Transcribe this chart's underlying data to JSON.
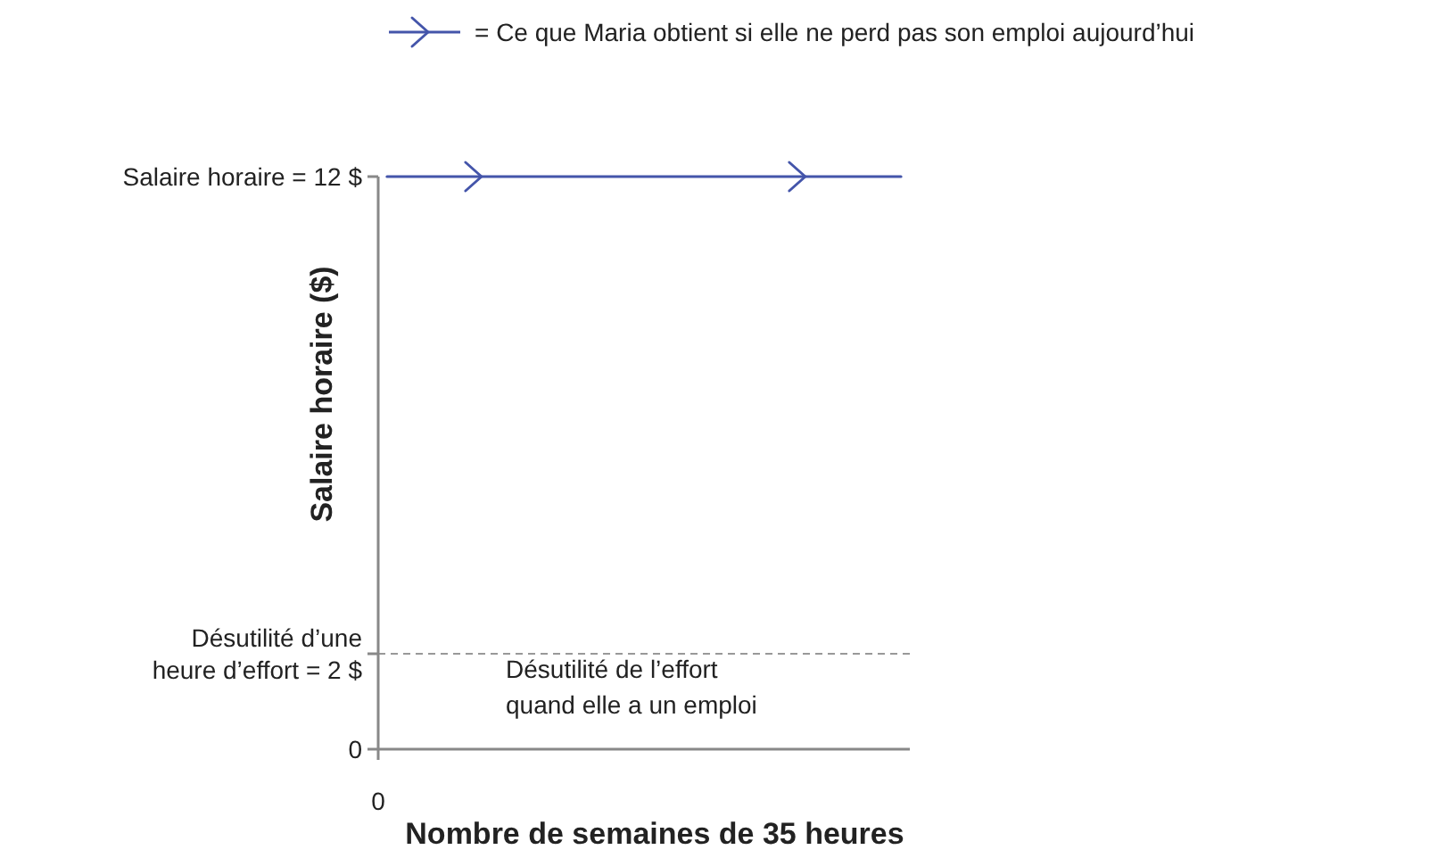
{
  "chart_data": {
    "type": "line",
    "xlabel": "Nombre de semaines de 35 heures",
    "ylabel": "Salaire horaire ($)",
    "categories": [
      null,
      null,
      null,
      null,
      null,
      null,
      null,
      null,
      null,
      null,
      null,
      null,
      null,
      null,
      null,
      null,
      null,
      null,
      null,
      null,
      null,
      null,
      null,
      null,
      null,
      null,
      null,
      null,
      null,
      null
    ],
    "series": [
      {
        "name": "= Ce que Maria obtient si elle ne perd pas son emploi aujourd’hui",
        "color": "#4455aa",
        "values": [
          12,
          12,
          12,
          12,
          12,
          12,
          12,
          12,
          12,
          12,
          12,
          12,
          12,
          12,
          12,
          12,
          12,
          12,
          12,
          12,
          12,
          12,
          12,
          12,
          12,
          12,
          12,
          12,
          12,
          12
        ]
      }
    ],
    "ylim": [
      0,
      12
    ],
    "yticks": [
      0,
      {
        "value": 2,
        "label": "Désutilité d’une heure d’effort = 2 $"
      },
      {
        "value": 12,
        "label": "Salaire horaire = 12 $"
      }
    ],
    "ref_lines": [
      {
        "axis": "y",
        "value": 2,
        "color": "#999999",
        "line_style": "dashed"
      }
    ],
    "annotations": [
      "Désutilité de l’effort quand elle a un emploi",
      "0"
    ],
    "legend": "top"
  }
}
